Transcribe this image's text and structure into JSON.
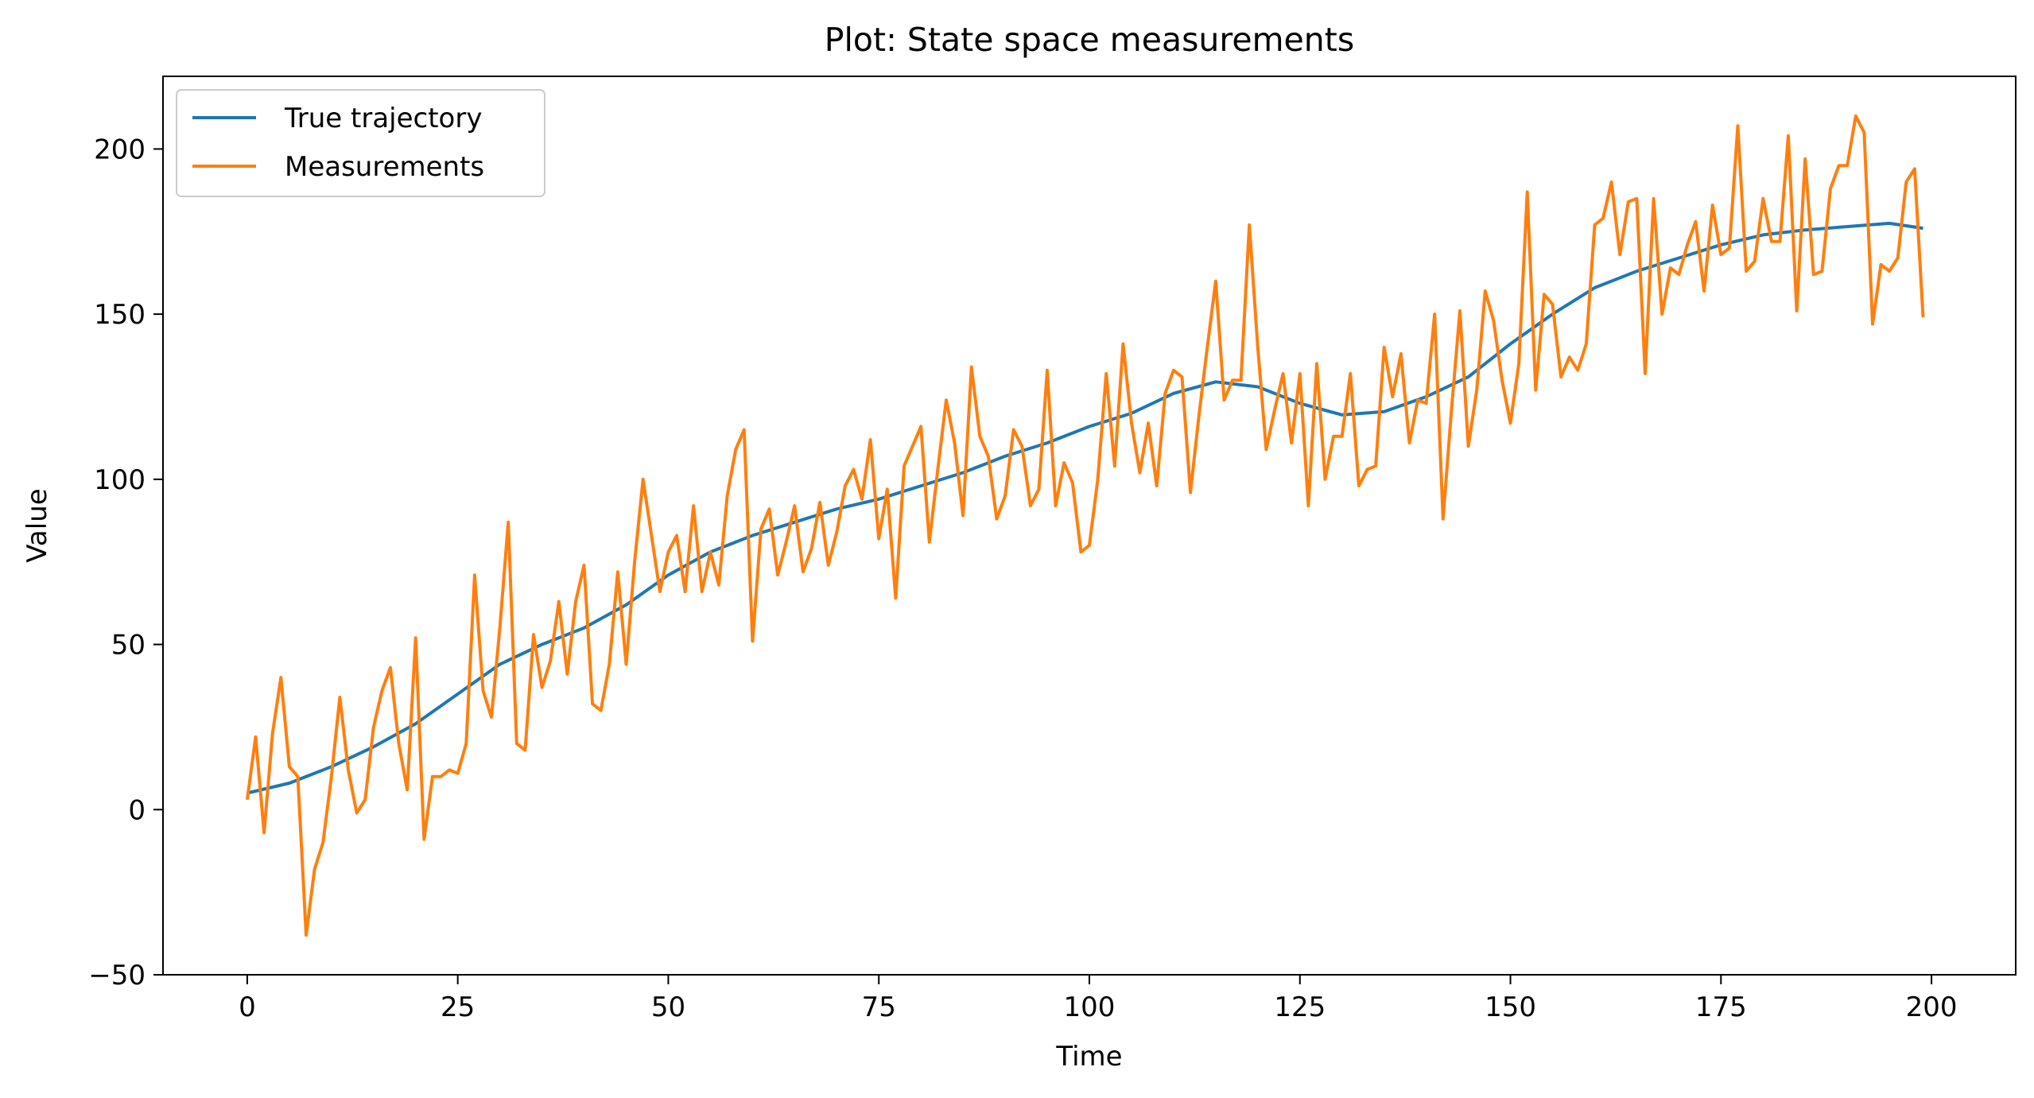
{
  "chart_data": {
    "type": "line",
    "title": "Plot: State space measurements",
    "xlabel": "Time",
    "ylabel": "Value",
    "xlim": [
      -10,
      210
    ],
    "ylim": [
      -50,
      222
    ],
    "xticks": [
      0,
      25,
      50,
      75,
      100,
      125,
      150,
      175,
      200
    ],
    "yticks": [
      -50,
      0,
      50,
      100,
      150,
      200
    ],
    "xtick_labels": [
      "0",
      "25",
      "50",
      "75",
      "100",
      "125",
      "150",
      "175",
      "200"
    ],
    "ytick_labels": [
      "−50",
      "0",
      "50",
      "100",
      "150",
      "200"
    ],
    "grid": false,
    "legend_position": "upper-left",
    "series": [
      {
        "name": "True trajectory",
        "color": "#1f77b4",
        "points": [
          [
            0,
            5
          ],
          [
            5,
            8
          ],
          [
            10,
            13
          ],
          [
            15,
            19
          ],
          [
            20,
            26
          ],
          [
            25,
            35
          ],
          [
            30,
            44
          ],
          [
            35,
            50
          ],
          [
            40,
            55
          ],
          [
            45,
            62
          ],
          [
            50,
            71
          ],
          [
            55,
            78
          ],
          [
            60,
            83
          ],
          [
            65,
            87
          ],
          [
            70,
            91
          ],
          [
            75,
            94
          ],
          [
            80,
            98
          ],
          [
            85,
            102
          ],
          [
            90,
            107
          ],
          [
            95,
            111
          ],
          [
            100,
            116
          ],
          [
            105,
            120
          ],
          [
            110,
            126
          ],
          [
            115,
            129.5
          ],
          [
            120,
            128
          ],
          [
            125,
            123
          ],
          [
            130,
            119.5
          ],
          [
            135,
            120.5
          ],
          [
            140,
            125
          ],
          [
            145,
            131
          ],
          [
            150,
            141
          ],
          [
            155,
            150
          ],
          [
            160,
            158
          ],
          [
            165,
            163
          ],
          [
            170,
            167
          ],
          [
            175,
            171
          ],
          [
            180,
            174
          ],
          [
            185,
            175.5
          ],
          [
            190,
            176.5
          ],
          [
            195,
            177.5
          ],
          [
            199,
            176
          ]
        ]
      },
      {
        "name": "Measurements",
        "color": "#ff7f0e",
        "values": [
          3,
          22,
          -7,
          23,
          40,
          13,
          10,
          -38,
          -18,
          -10,
          10,
          34,
          12,
          -1,
          3,
          25,
          36,
          43,
          20,
          6,
          52,
          -9,
          10,
          10,
          12,
          11,
          20,
          71,
          36,
          28,
          55,
          87,
          20,
          18,
          53,
          37,
          45,
          63,
          41,
          63,
          74,
          32,
          30,
          44,
          72,
          44,
          75,
          100,
          83,
          66,
          78,
          83,
          66,
          92,
          66,
          78,
          68,
          95,
          109,
          115,
          51,
          85,
          91,
          71,
          81,
          92,
          72,
          79,
          93,
          74,
          84,
          98,
          103,
          94,
          112,
          82,
          97,
          64,
          104,
          110,
          116,
          81,
          103,
          124,
          111,
          89,
          134,
          113,
          107,
          88,
          95,
          115,
          110,
          92,
          97,
          133,
          92,
          105,
          99,
          78,
          80,
          100,
          132,
          104,
          141,
          117,
          102,
          117,
          98,
          126,
          133,
          131,
          96,
          119,
          140,
          160,
          124,
          130,
          130,
          177,
          140,
          109,
          121,
          132,
          111,
          132,
          92,
          135,
          100,
          113,
          113,
          132,
          98,
          103,
          104,
          140,
          125,
          138,
          111,
          124,
          123,
          150,
          88,
          121,
          151,
          110,
          127,
          157,
          148,
          130,
          117,
          135,
          187,
          127,
          156,
          153,
          131,
          137,
          133,
          141,
          177,
          179,
          190,
          168,
          184,
          185,
          132,
          185,
          150,
          164,
          162,
          171,
          178,
          157,
          183,
          168,
          170,
          207,
          163,
          166,
          185,
          172,
          172,
          204,
          151,
          197,
          162,
          163,
          188,
          195,
          195,
          210,
          205,
          147,
          165,
          163,
          167,
          190,
          194,
          149
        ]
      }
    ]
  }
}
